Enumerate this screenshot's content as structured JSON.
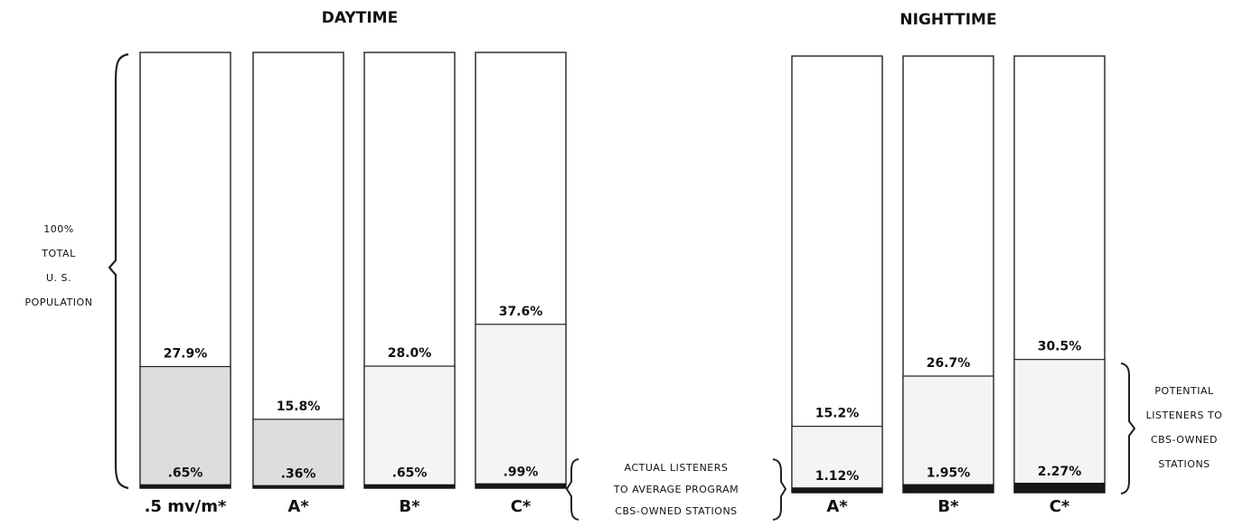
{
  "colors": {
    "background": "#ffffff",
    "ink": "#161616",
    "potential_fill_daytime_dense": "#dddddd",
    "potential_fill_light": "#f4f4f4"
  },
  "chart_data": {
    "type": "bar",
    "stacked": true,
    "title": "",
    "groups": [
      {
        "title": "DAYTIME",
        "categories": [
          ".5 mv/m*",
          "A*",
          "B*",
          "C*"
        ],
        "total": [
          100,
          100,
          100,
          100
        ],
        "series": [
          {
            "values": [
              27.9,
              15.8,
              28.0,
              37.6
            ],
            "labels": [
              "27.9%",
              "15.8%",
              "28.0%",
              "37.6%"
            ]
          },
          {
            "values": [
              0.65,
              0.36,
              0.65,
              0.99
            ],
            "labels": [
              ".65%",
              ".36%",
              ".65%",
              ".99%"
            ]
          }
        ]
      },
      {
        "title": "NIGHTTIME",
        "categories": [
          "A*",
          "B*",
          "C*"
        ],
        "total": [
          100,
          100,
          100
        ],
        "series": [
          {
            "values": [
              15.2,
              26.7,
              30.5
            ],
            "labels": [
              "15.2%",
              "26.7%",
              "30.5%"
            ]
          },
          {
            "values": [
              1.12,
              1.95,
              2.27
            ],
            "labels": [
              "1.12%",
              "1.95%",
              "2.27%"
            ]
          }
        ]
      }
    ],
    "ylim": [
      0,
      100
    ],
    "grid": false,
    "annotations": {
      "total": [
        "100%",
        "TOTAL",
        "U. S.",
        "POPULATION"
      ],
      "actual": [
        "ACTUAL LISTENERS",
        "TO AVERAGE PROGRAM",
        "CBS-OWNED STATIONS"
      ],
      "potential": [
        "POTENTIAL",
        "LISTENERS TO",
        "CBS-OWNED",
        "STATIONS"
      ]
    }
  }
}
